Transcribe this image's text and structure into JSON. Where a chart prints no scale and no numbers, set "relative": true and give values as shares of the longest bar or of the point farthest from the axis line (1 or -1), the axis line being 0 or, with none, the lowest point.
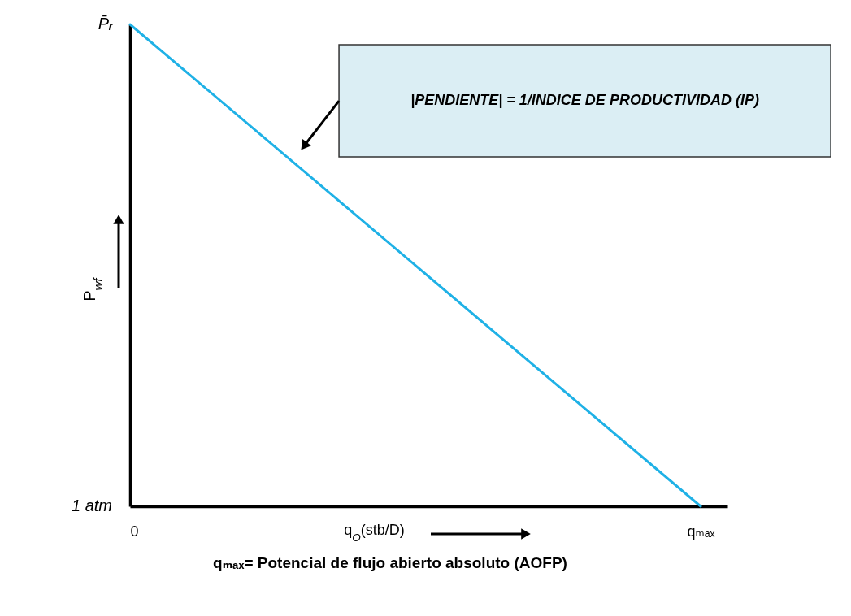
{
  "chart_data": {
    "type": "line",
    "relative": true,
    "categories": [
      "0",
      "qₘₐₓ"
    ],
    "series": [
      {
        "color": "#1fb1e6",
        "values": [
          1,
          0
        ]
      }
    ],
    "xlabel": "q$_{O}$(stb/D)",
    "ylabel": "P$_{wf}$",
    "tick_labels": "x",
    "annotations": [
      "P̄ᵣ",
      "1 atm",
      "|PENDIENTE| = 1/INDICE DE PRODUCTIVIDAD (IP)",
      "qₘₐₓ= Potencial de flujo abierto absoluto (AOFP)"
    ]
  }
}
